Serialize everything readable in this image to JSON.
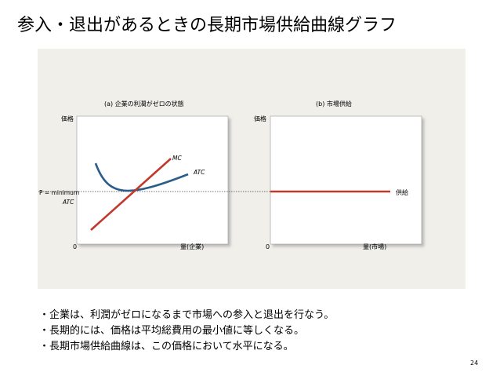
{
  "slide": {
    "title": "参入・退出があるときの長期市場供給曲線グラフ",
    "page_number": "24"
  },
  "figure": {
    "panel_a": {
      "title": "(a) 企業の利潤がゼロの状態",
      "y_axis_label": "価格",
      "x_axis_label": "量(企業)",
      "origin_label": "0",
      "mc_label": "MC",
      "atc_label": "ATC",
      "price_label_line1": "P = minimum",
      "price_label_line2": "ATC"
    },
    "panel_b": {
      "title": "(b) 市場供給",
      "y_axis_label": "価格",
      "x_axis_label": "量(市場)",
      "origin_label": "0",
      "supply_label": "供給"
    },
    "colors": {
      "mc": "#c0392b",
      "atc": "#2b5c8a",
      "supply": "#c0392b",
      "panel_bg": "#f0efea"
    }
  },
  "bullets": [
    "・企業は、利潤がゼロになるまで市場への参入と退出を行なう。",
    "・長期的には、価格は平均総費用の最小値に等しくなる。",
    "・長期市場供給曲線は、この価格において水平になる。"
  ]
}
